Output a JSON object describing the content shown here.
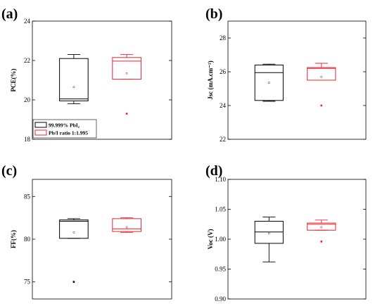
{
  "colors": {
    "black": "#000000",
    "red": "#e8242c",
    "gray": "#555555"
  },
  "legend": [
    {
      "label": "99.999% PbI₂",
      "color": "#000000"
    },
    {
      "label": "Pb/I ratio 1:1.995",
      "color": "#e8242c"
    }
  ],
  "chart_data": [
    {
      "type": "box",
      "panel": "(a)",
      "ylabel": "PCE(%)",
      "ylim": [
        18,
        24
      ],
      "yticks": [
        18,
        20,
        22,
        24
      ],
      "legend": "bottom-left",
      "series": [
        {
          "name": "99.999% PbI₂",
          "whisker_low": 19.8,
          "q1": 19.95,
          "median": 20.05,
          "q3": 22.1,
          "whisker_high": 22.3,
          "mean": 20.65,
          "outliers": []
        },
        {
          "name": "Pb/I ratio 1:1.995",
          "whisker_low": 21.05,
          "q1": 21.05,
          "median": 21.97,
          "q3": 22.15,
          "whisker_high": 22.3,
          "mean": 21.35,
          "outliers": [
            19.3
          ]
        }
      ]
    },
    {
      "type": "box",
      "panel": "(b)",
      "ylabel": "Jsc (mA.cm⁻²)",
      "ylim": [
        22,
        29
      ],
      "yticks": [
        22,
        24,
        26,
        28
      ],
      "series": [
        {
          "name": "99.999% PbI₂",
          "whisker_low": 24.25,
          "q1": 24.3,
          "median": 25.95,
          "q3": 26.4,
          "whisker_high": 26.45,
          "mean": 25.35,
          "outliers": []
        },
        {
          "name": "Pb/I ratio 1:1.995",
          "whisker_low": 25.5,
          "q1": 25.5,
          "median": 26.2,
          "q3": 26.25,
          "whisker_high": 26.5,
          "mean": 25.7,
          "outliers": [
            24.0
          ]
        }
      ]
    },
    {
      "type": "box",
      "panel": "(c)",
      "ylabel": "FF(%)",
      "ylim": [
        73,
        87
      ],
      "yticks": [
        75,
        80,
        85
      ],
      "series": [
        {
          "name": "99.999% PbI₂",
          "whisker_low": 80.1,
          "q1": 80.1,
          "median": 82.1,
          "q3": 82.25,
          "whisker_high": 82.4,
          "mean": 80.8,
          "outliers": [
            75.0
          ]
        },
        {
          "name": "Pb/I ratio 1:1.995",
          "whisker_low": 80.8,
          "q1": 80.9,
          "median": 81.2,
          "q3": 82.4,
          "whisker_high": 82.5,
          "mean": 81.4,
          "outliers": []
        }
      ]
    },
    {
      "type": "box",
      "panel": "(d)",
      "ylabel": "Voc (V)",
      "ylim": [
        0.9,
        1.1
      ],
      "yticks": [
        0.9,
        0.95,
        1.0,
        1.05,
        1.1
      ],
      "yticklabels": [
        "0.90",
        "0.95",
        "1.00",
        "1.05",
        "1.10"
      ],
      "series": [
        {
          "name": "99.999% PbI₂",
          "whisker_low": 0.962,
          "q1": 0.993,
          "median": 1.012,
          "q3": 1.03,
          "whisker_high": 1.037,
          "mean": 1.01,
          "outliers": []
        },
        {
          "name": "Pb/I ratio 1:1.995",
          "whisker_low": 1.015,
          "q1": 1.015,
          "median": 1.025,
          "q3": 1.027,
          "whisker_high": 1.032,
          "mean": 1.02,
          "outliers": [
            0.996
          ]
        }
      ]
    }
  ]
}
